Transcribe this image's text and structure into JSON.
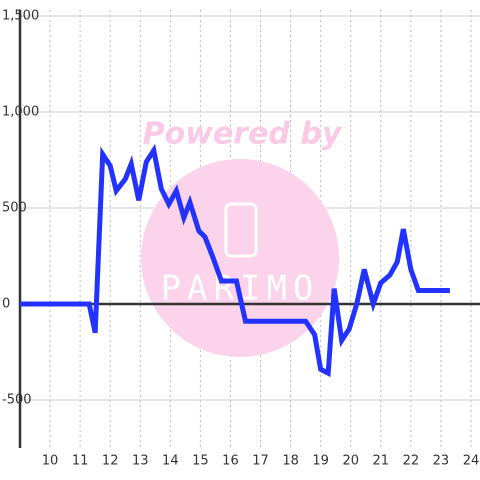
{
  "chart_data": {
    "type": "line",
    "watermark": {
      "top": "Powered by",
      "logo": "PARIMO"
    },
    "xlim": [
      9,
      24.3
    ],
    "ylim": [
      -750,
      1500
    ],
    "xticks": [
      10,
      11,
      12,
      13,
      14,
      15,
      16,
      17,
      18,
      19,
      20,
      21,
      22,
      23,
      24
    ],
    "yticks": [
      {
        "value": -500,
        "label": "-500"
      },
      0,
      500,
      {
        "value": 1000,
        "label": "1,000"
      },
      {
        "value": 1500,
        "label": "1,500"
      }
    ],
    "grid": true,
    "series": [
      {
        "color": "#2233ff",
        "x": [
          9,
          11.3,
          11.5,
          11.75,
          12,
          12.2,
          12.5,
          12.7,
          12.95,
          13.2,
          13.45,
          13.7,
          13.95,
          14.2,
          14.45,
          14.65,
          14.95,
          15.15,
          15.4,
          15.7,
          16.2,
          16.5,
          18.5,
          18.8,
          19,
          19.25,
          19.45,
          19.7,
          19.95,
          20.2,
          20.45,
          20.75,
          21,
          21.3,
          21.55,
          21.75,
          22,
          22.25,
          23.3
        ],
        "values": [
          0,
          0,
          -150,
          780,
          720,
          590,
          650,
          730,
          540,
          740,
          800,
          600,
          520,
          590,
          450,
          530,
          380,
          350,
          250,
          120,
          120,
          -90,
          -90,
          -160,
          -340,
          -360,
          80,
          -190,
          -130,
          0,
          180,
          0,
          110,
          150,
          220,
          390,
          180,
          70,
          70
        ]
      }
    ]
  }
}
